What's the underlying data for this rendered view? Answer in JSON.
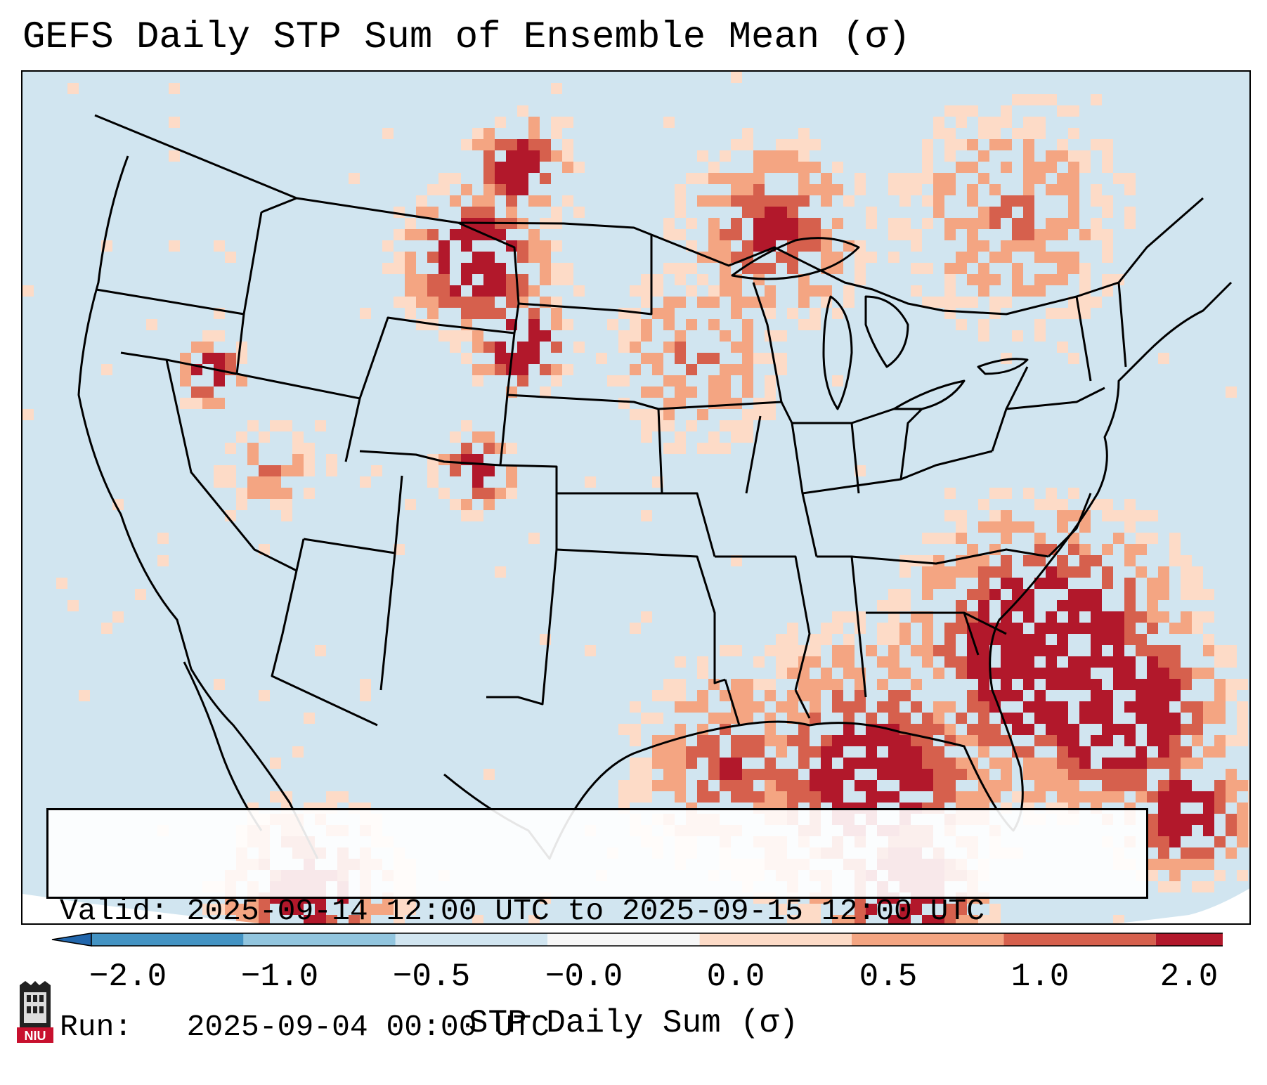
{
  "title": "GEFS Daily STP Sum of Ensemble Mean (σ)",
  "info": {
    "valid": "Valid: 2025-09-14 12:00 UTC to 2025-09-15 12:00 UTC",
    "run": "Run:   2025-09-04 00:00 UTC"
  },
  "colorbar": {
    "label": "STP Daily Sum (σ)",
    "ticks": [
      "−2.0",
      "−1.0",
      "−0.5",
      "−0.0",
      "0.0",
      "0.5",
      "1.0",
      "2.0"
    ],
    "colors": [
      "#4393c3",
      "#92c5de",
      "#d1e5f0",
      "#f7f7f7",
      "#fddbc7",
      "#f4a582",
      "#d6604d",
      "#b2182b"
    ],
    "extend": "both"
  },
  "map": {
    "region": "Continental United States",
    "background_color": "#d1e5f0",
    "outside_color": "#ffffff"
  },
  "logo": {
    "text": "NIU",
    "color": "#c8102e"
  }
}
